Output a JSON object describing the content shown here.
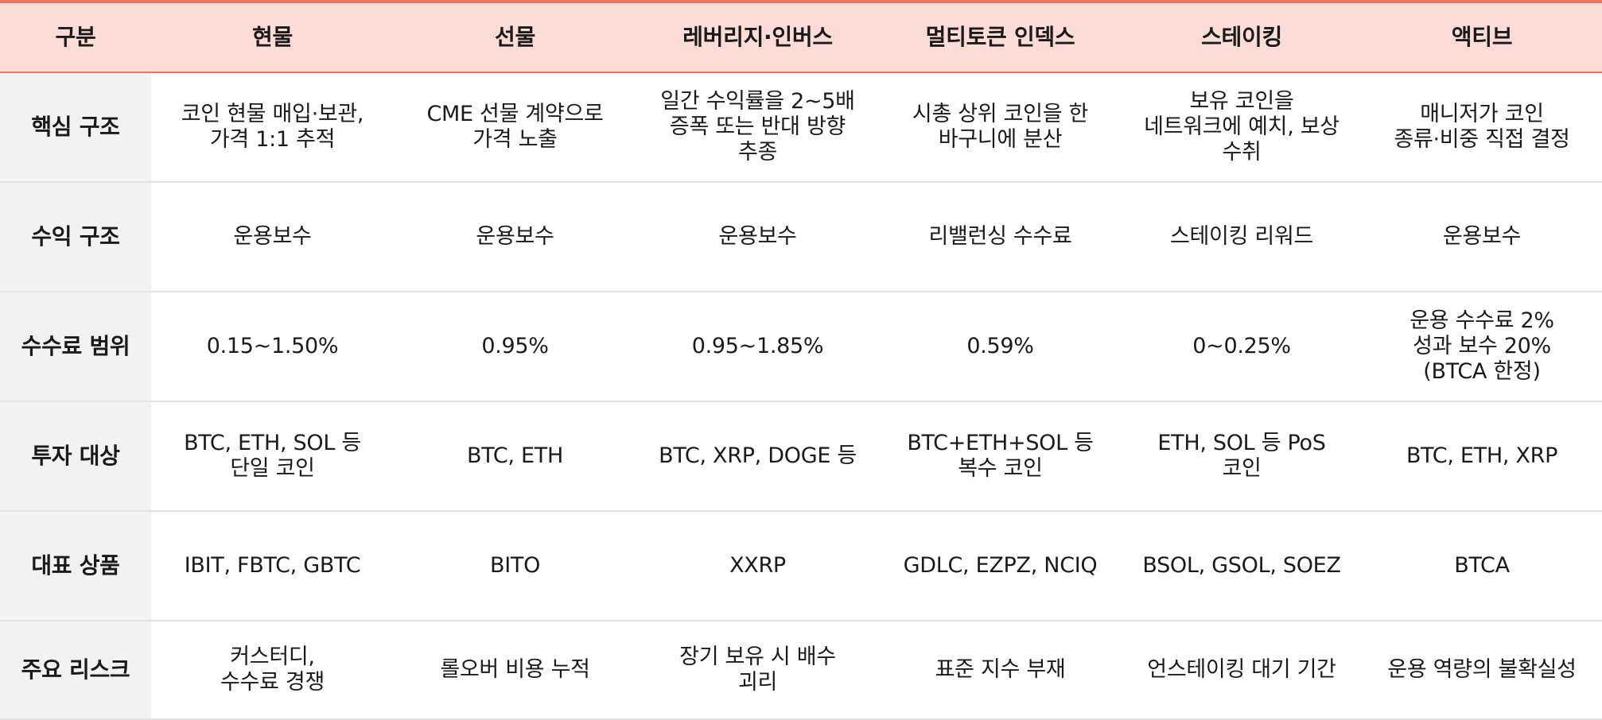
{
  "headers": [
    "구분",
    "현물",
    "선물",
    "레버리지·인버스",
    "멀티토큰 인덱스",
    "스테이킹",
    "액티브"
  ],
  "rows": [
    {
      "label": "핵심 구조",
      "cells": [
        "코인 현물 매입·보관,\n가격 1:1 추적",
        "CME 선물 계약으로\n가격 노출",
        "일간 수익률을 2~5배\n증폭 또는 반대 방향\n추종",
        "시총 상위 코인을 한\n바구니에 분산",
        "보유 코인을\n네트워크에 예치, 보상\n수취",
        "매니저가 코인\n종류·비중 직접 결정"
      ]
    },
    {
      "label": "수익 구조",
      "cells": [
        "운용보수",
        "운용보수",
        "운용보수",
        "리밸런싱 수수료",
        "스테이킹 리워드",
        "운용보수"
      ]
    },
    {
      "label": "수수료 범위",
      "cells": [
        "0.15~1.50%",
        "0.95%",
        "0.95~1.85%",
        "0.59%",
        "0~0.25%",
        "운용 수수료 2%\n성과 보수 20%\n(BTCA 한정)"
      ]
    },
    {
      "label": "투자 대상",
      "cells": [
        "BTC, ETH, SOL 등\n단일 코인",
        "BTC, ETH",
        "BTC, XRP, DOGE 등",
        "BTC+ETH+SOL 등\n복수 코인",
        "ETH, SOL 등 PoS\n코인",
        "BTC, ETH, XRP"
      ]
    },
    {
      "label": "대표 상품",
      "cells": [
        "IBIT, FBTC, GBTC",
        "BITO",
        "XXRP",
        "GDLC, EZPZ, NCIQ",
        "BSOL, GSOL, SOEZ",
        "BTCA"
      ]
    },
    {
      "label": "주요 리스크",
      "cells": [
        "커스터디,\n수수료 경쟁",
        "롤오버 비용 누적",
        "장기 보유 시 배수\n괴리",
        "표준 지수 부재",
        "언스테이킹 대기 기간",
        "운용 역량의 불확실성"
      ]
    }
  ],
  "colors": {
    "accent": "#f4735a",
    "header_bg": "#fcdcd6",
    "rowhead_bg": "#f2f2f2",
    "border": "#e2e2e2"
  }
}
